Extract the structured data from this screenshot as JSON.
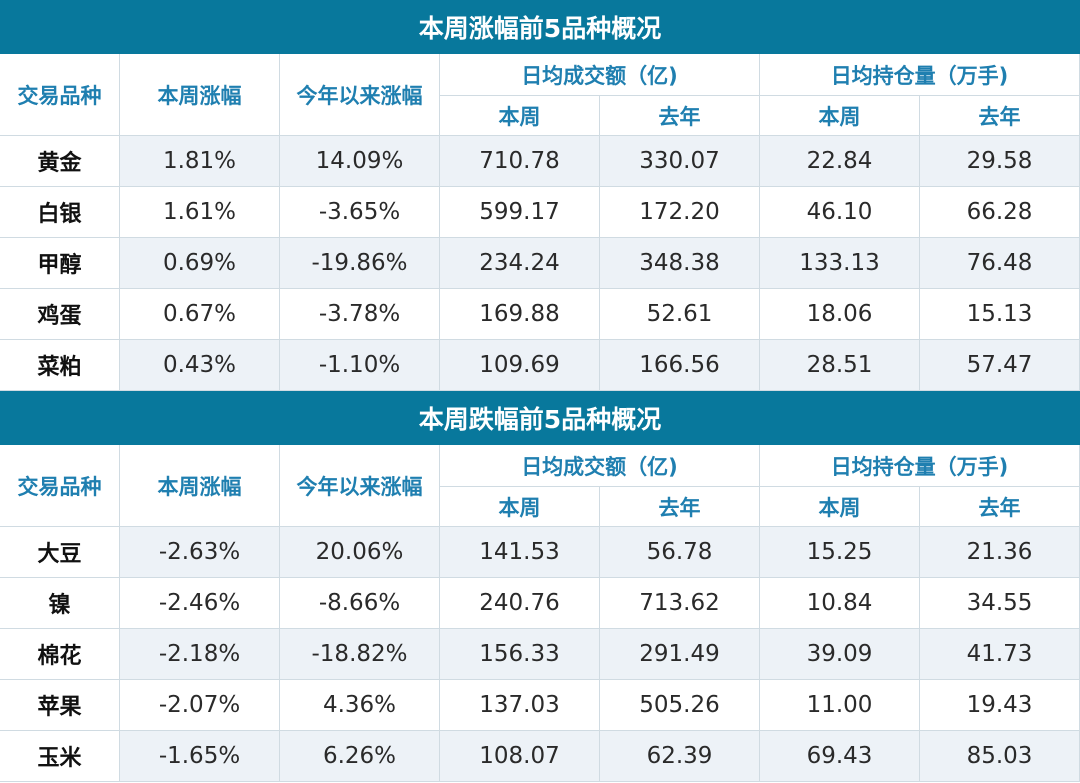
{
  "header_labels": {
    "variety": "交易品种",
    "weekly_change": "本周涨幅",
    "ytd_change": "今年以来涨幅",
    "avg_turnover": "日均成交额（亿)",
    "avg_open_interest": "日均持仓量（万手)",
    "this_week": "本周",
    "last_year": "去年"
  },
  "sections": [
    {
      "title": "本周涨幅前5品种概况",
      "rows": [
        {
          "name": "黄金",
          "values": [
            "1.81%",
            "14.09%",
            "710.78",
            "330.07",
            "22.84",
            "29.58"
          ]
        },
        {
          "name": "白银",
          "values": [
            "1.61%",
            "-3.65%",
            "599.17",
            "172.20",
            "46.10",
            "66.28"
          ]
        },
        {
          "name": "甲醇",
          "values": [
            "0.69%",
            "-19.86%",
            "234.24",
            "348.38",
            "133.13",
            "76.48"
          ]
        },
        {
          "name": "鸡蛋",
          "values": [
            "0.67%",
            "-3.78%",
            "169.88",
            "52.61",
            "18.06",
            "15.13"
          ]
        },
        {
          "name": "菜粕",
          "values": [
            "0.43%",
            "-1.10%",
            "109.69",
            "166.56",
            "28.51",
            "57.47"
          ]
        }
      ]
    },
    {
      "title": "本周跌幅前5品种概况",
      "rows": [
        {
          "name": "大豆",
          "values": [
            "-2.63%",
            "20.06%",
            "141.53",
            "56.78",
            "15.25",
            "21.36"
          ]
        },
        {
          "name": "镍",
          "values": [
            "-2.46%",
            "-8.66%",
            "240.76",
            "713.62",
            "10.84",
            "34.55"
          ]
        },
        {
          "name": "棉花",
          "values": [
            "-2.18%",
            "-18.82%",
            "156.33",
            "291.49",
            "39.09",
            "41.73"
          ]
        },
        {
          "name": "苹果",
          "values": [
            "-2.07%",
            "4.36%",
            "137.03",
            "505.26",
            "11.00",
            "19.43"
          ]
        },
        {
          "name": "玉米",
          "values": [
            "-1.65%",
            "6.26%",
            "108.07",
            "62.39",
            "69.43",
            "85.03"
          ]
        }
      ]
    }
  ],
  "colors": {
    "banner_bg": "#08789c",
    "header_text": "#1f7fb0",
    "row_shade": "#edf2f7",
    "grid_line": "#d0dbe2"
  }
}
